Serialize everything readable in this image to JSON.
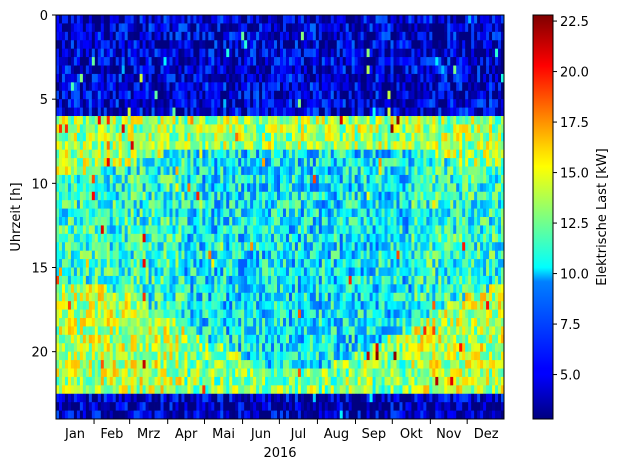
{
  "chart_data": {
    "type": "heatmap",
    "title": "",
    "xlabel": "2016",
    "ylabel": "Uhrzeit [h]",
    "x_tick_labels": [
      "Jan",
      "Feb",
      "Mrz",
      "Apr",
      "Mai",
      "Jun",
      "Jul",
      "Aug",
      "Sep",
      "Okt",
      "Nov",
      "Dez"
    ],
    "y_ticks": [
      0,
      5,
      10,
      15,
      20
    ],
    "ylim": [
      24,
      0
    ],
    "x_range_days": [
      1,
      366
    ],
    "colorscale": "jet",
    "colorbar": {
      "label": "Elektrische Last [kW]",
      "min": 2.8,
      "max": 22.8,
      "ticks": [
        5.0,
        7.5,
        10.0,
        12.5,
        15.0,
        17.5,
        20.0,
        22.5
      ],
      "tick_labels": [
        "5.0",
        "7.5",
        "10.0",
        "12.5",
        "15.0",
        "17.5",
        "20.0",
        "22.5"
      ]
    },
    "load_pattern_kW": {
      "night_0_6h": 4.5,
      "night_22_24h": 4.0,
      "morning_peak_6_8h": 13.5,
      "midday_winter": 11.0,
      "midday_summer": 10.0,
      "evening_peak_winter_16_22h": 14.0,
      "evening_peak_summer_20_22h": 13.0,
      "weekend_midday": 7.0
    }
  }
}
